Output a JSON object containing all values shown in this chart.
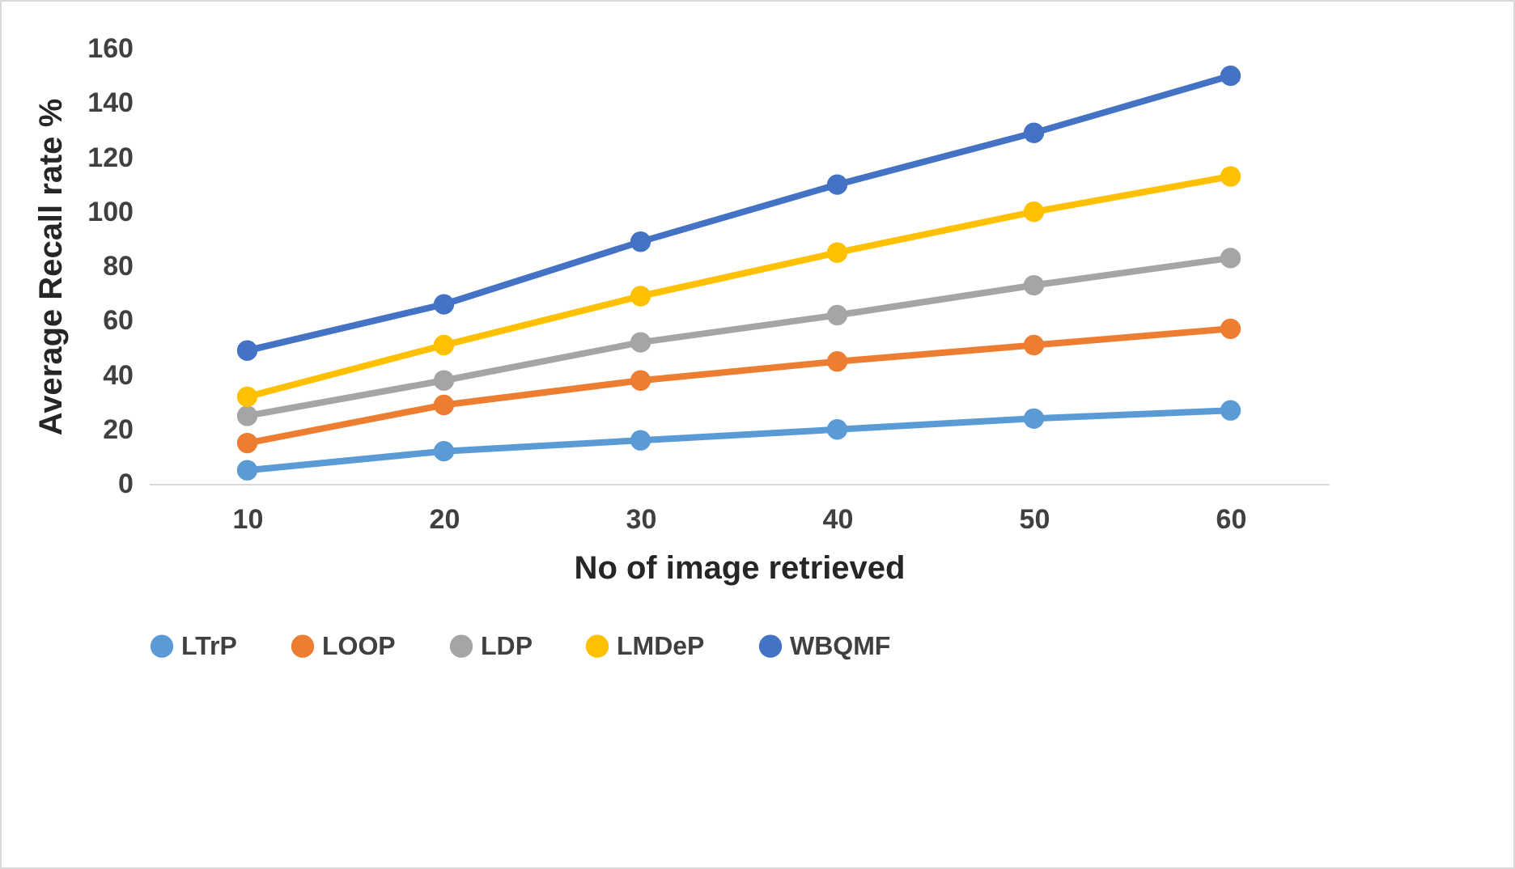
{
  "chart_data": {
    "type": "line",
    "xlabel": "No of image retrieved",
    "ylabel": "Average Recall rate %",
    "categories": [
      "10",
      "20",
      "30",
      "40",
      "50",
      "60"
    ],
    "ylim": [
      0,
      160
    ],
    "yticks": [
      0,
      20,
      40,
      60,
      80,
      100,
      120,
      140,
      160
    ],
    "grid": false,
    "legend": "bottom",
    "marker": "circle",
    "line_style": "solid",
    "series": [
      {
        "name": "LTrP",
        "color": "#5b9bd5",
        "values": [
          5,
          12,
          16,
          20,
          24,
          27
        ]
      },
      {
        "name": "LOOP",
        "color": "#ed7d31",
        "values": [
          15,
          29,
          38,
          45,
          51,
          57
        ]
      },
      {
        "name": "LDP",
        "color": "#a5a5a5",
        "values": [
          25,
          38,
          52,
          62,
          73,
          83
        ]
      },
      {
        "name": "LMDeP",
        "color": "#ffc000",
        "values": [
          32,
          51,
          69,
          85,
          100,
          113
        ]
      },
      {
        "name": "WBQMF",
        "color": "#4472c4",
        "values": [
          49,
          66,
          89,
          110,
          129,
          150
        ]
      }
    ]
  }
}
